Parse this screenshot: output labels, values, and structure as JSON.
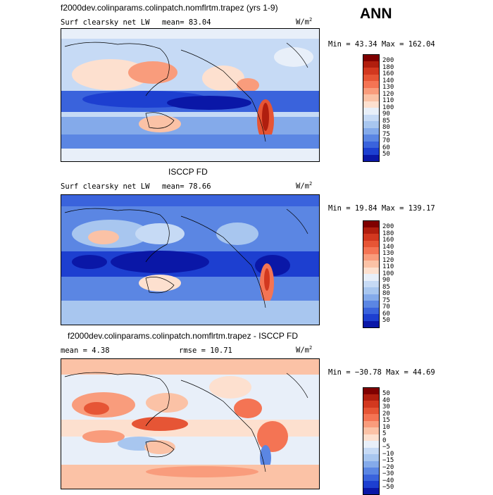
{
  "season": "ANN",
  "panels": [
    {
      "title": "f2000dev.colinparams.colinpatch.nomflrtm.trapez (yrs 1-9)",
      "left_label": "Surf clearsky net LW",
      "mean_label": "mean=  83.04",
      "units": "W/m",
      "units_exp": "2",
      "minmax": "Min =  43.34 Max = 162.04",
      "colorbar": {
        "labels": [
          "200",
          "180",
          "160",
          "140",
          "130",
          "120",
          "110",
          "100",
          "90",
          "85",
          "80",
          "75",
          "70",
          "60",
          "50"
        ],
        "colors": [
          "#7f0000",
          "#b01e0e",
          "#d2381f",
          "#e65535",
          "#f47454",
          "#f99c7c",
          "#fbc2a6",
          "#fde0cf",
          "#e8eff9",
          "#c6daf5",
          "#a8c6ef",
          "#84aaea",
          "#5b86e3",
          "#3a63dc",
          "#1d3fd0",
          "#0a17a7"
        ]
      }
    },
    {
      "title": "ISCCP FD",
      "left_label": "Surf clearsky net LW",
      "mean_label": "mean=  78.66",
      "units": "W/m",
      "units_exp": "2",
      "minmax": "Min =  19.84 Max = 139.17",
      "colorbar": {
        "labels": [
          "200",
          "180",
          "160",
          "140",
          "130",
          "120",
          "110",
          "100",
          "90",
          "85",
          "80",
          "75",
          "70",
          "60",
          "50"
        ],
        "colors": [
          "#7f0000",
          "#b01e0e",
          "#d2381f",
          "#e65535",
          "#f47454",
          "#f99c7c",
          "#fbc2a6",
          "#fde0cf",
          "#e8eff9",
          "#c6daf5",
          "#a8c6ef",
          "#84aaea",
          "#5b86e3",
          "#3a63dc",
          "#1d3fd0",
          "#0a17a7"
        ]
      }
    },
    {
      "title": "f2000dev.colinparams.colinpatch.nomflrtm.trapez - ISCCP FD",
      "mean_label": "mean =   4.38",
      "rmse_label": "rmse =  10.71",
      "units": "W/m",
      "units_exp": "2",
      "minmax": "Min = −30.78 Max =  44.69",
      "colorbar": {
        "labels": [
          "50",
          "40",
          "30",
          "20",
          "15",
          "10",
          "5",
          "0",
          "−5",
          "−10",
          "−15",
          "−20",
          "−30",
          "−40",
          "−50"
        ],
        "colors": [
          "#7f0000",
          "#b01e0e",
          "#d2381f",
          "#e65535",
          "#f47454",
          "#f99c7c",
          "#fbc2a6",
          "#fde0cf",
          "#e8eff9",
          "#c6daf5",
          "#a8c6ef",
          "#84aaea",
          "#5b86e3",
          "#3a63dc",
          "#1d3fd0",
          "#0a17a7"
        ]
      }
    }
  ],
  "chart_data": [
    {
      "type": "heatmap",
      "title": "f2000dev.colinparams.colinpatch.nomflrtm.trapez (yrs 1-9)",
      "variable": "Surf clearsky net LW",
      "mean": 83.04,
      "min": 43.34,
      "max": 162.04,
      "units": "W/m2",
      "levels": [
        50,
        60,
        70,
        75,
        80,
        85,
        90,
        100,
        110,
        120,
        130,
        140,
        160,
        180,
        200
      ]
    },
    {
      "type": "heatmap",
      "title": "ISCCP FD",
      "variable": "Surf clearsky net LW",
      "mean": 78.66,
      "min": 19.84,
      "max": 139.17,
      "units": "W/m2",
      "levels": [
        50,
        60,
        70,
        75,
        80,
        85,
        90,
        100,
        110,
        120,
        130,
        140,
        160,
        180,
        200
      ]
    },
    {
      "type": "heatmap",
      "title": "f2000dev.colinparams.colinpatch.nomflrtm.trapez - ISCCP FD",
      "mean": 4.38,
      "rmse": 10.71,
      "min": -30.78,
      "max": 44.69,
      "units": "W/m2",
      "levels": [
        -50,
        -40,
        -30,
        -20,
        -15,
        -10,
        -5,
        0,
        5,
        10,
        15,
        20,
        30,
        40,
        50
      ]
    }
  ]
}
